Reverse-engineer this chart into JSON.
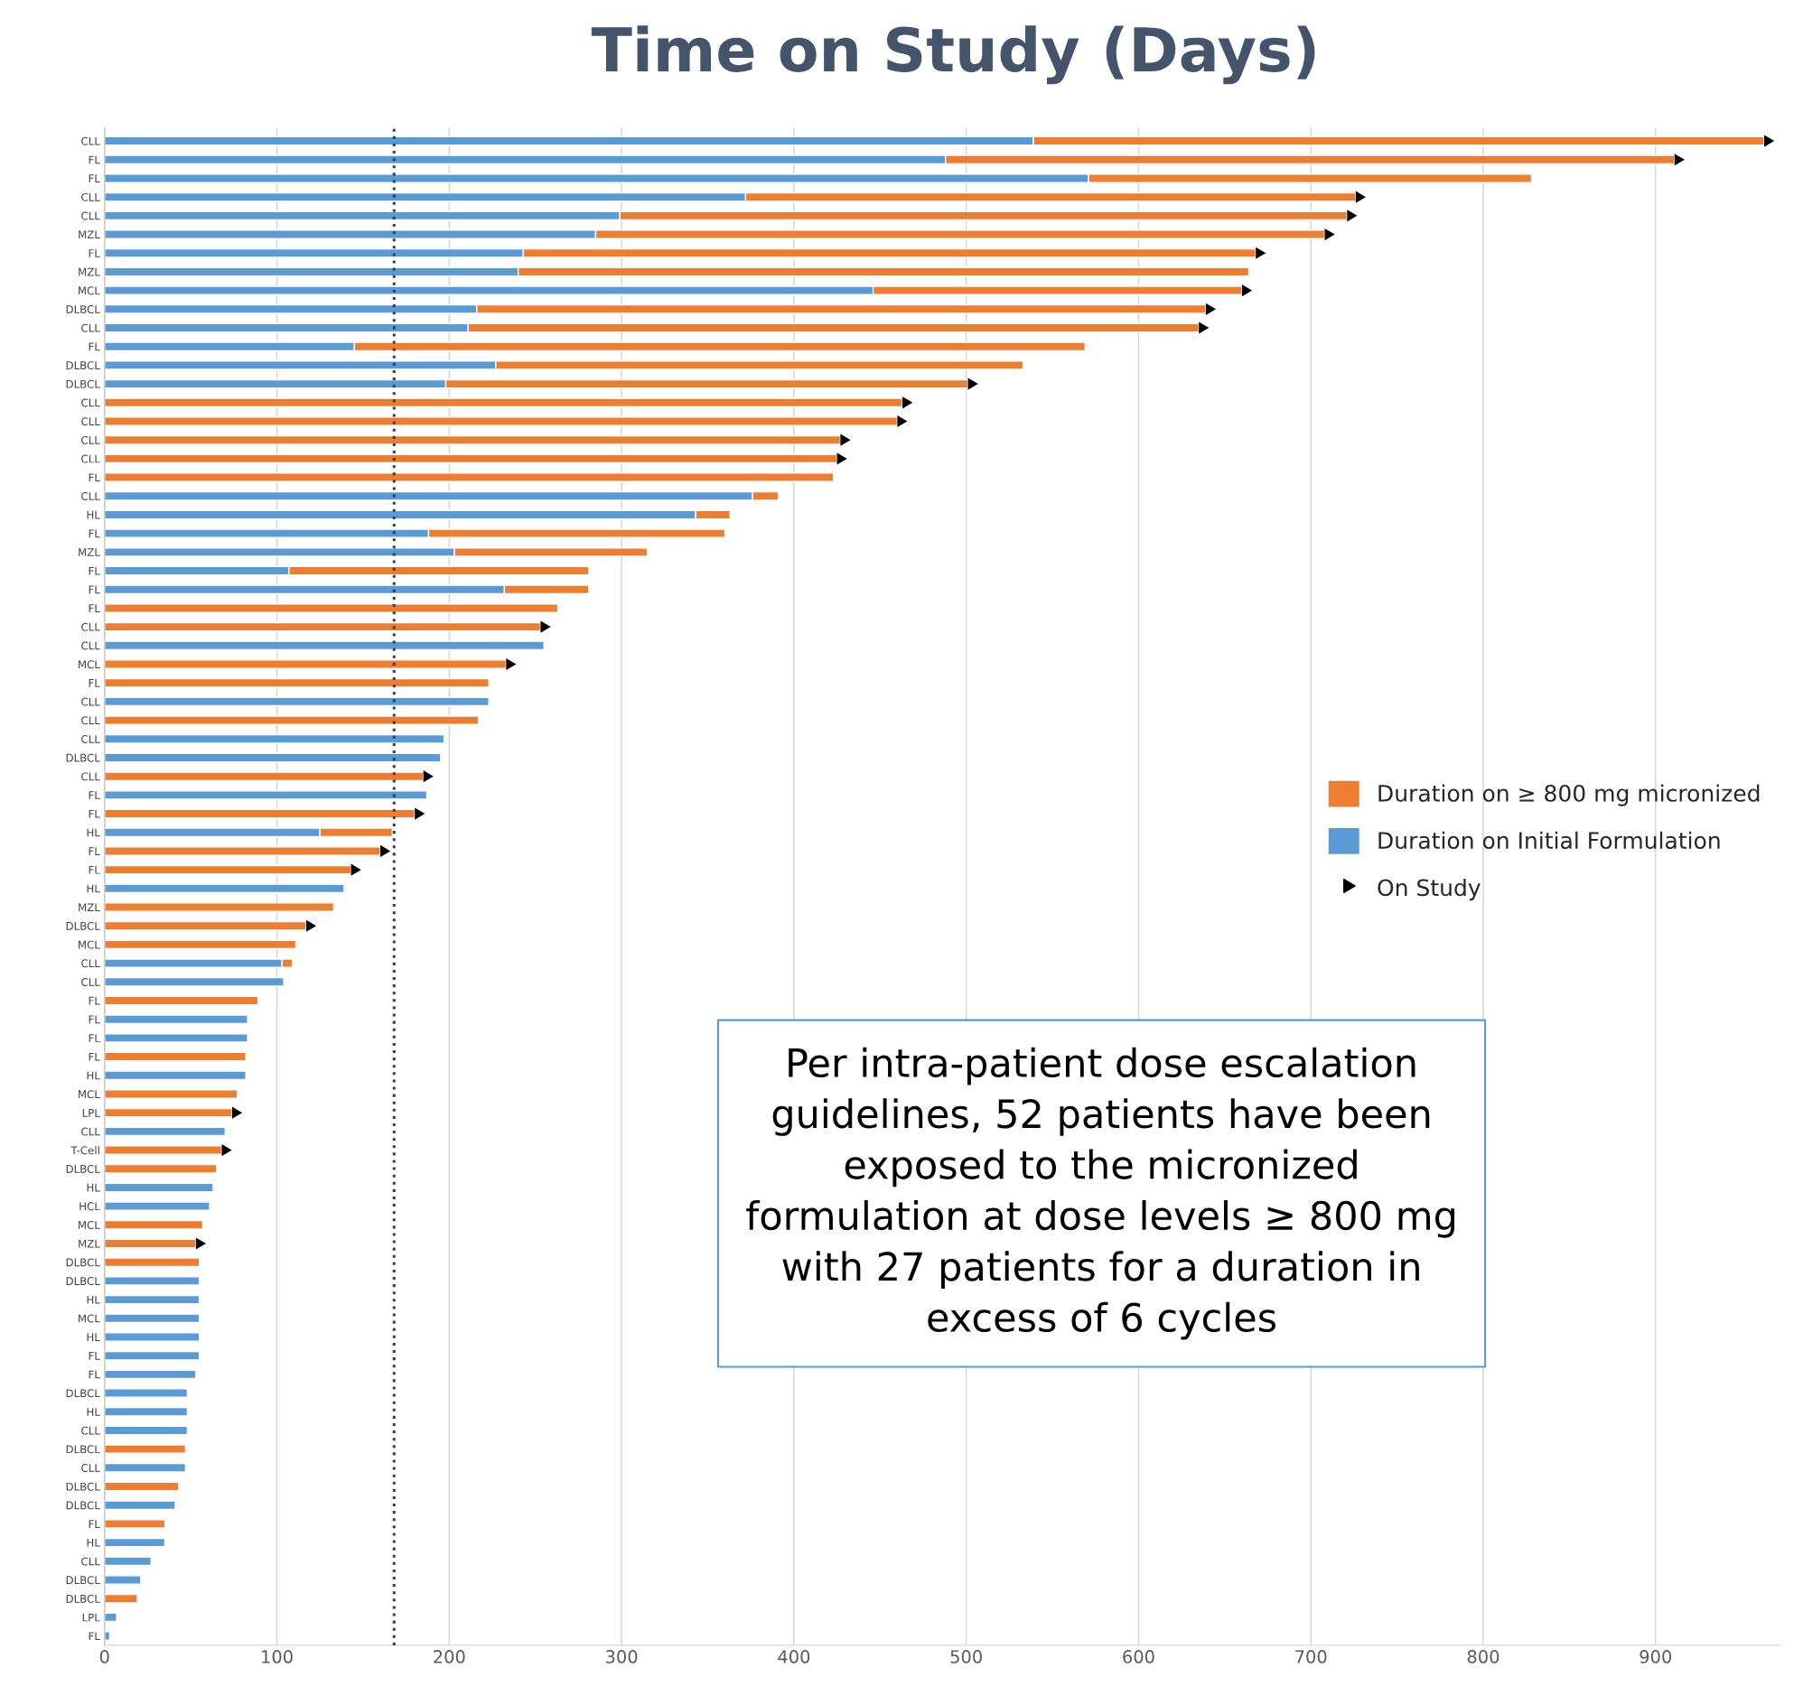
{
  "chart_data": {
    "type": "bar",
    "orientation": "horizontal",
    "stacked": true,
    "title": "Time on Study (Days)",
    "categories": [
      "CLL",
      "FL",
      "FL",
      "CLL",
      "CLL",
      "MZL",
      "FL",
      "MZL",
      "MCL",
      "DLBCL",
      "CLL",
      "FL",
      "DLBCL",
      "DLBCL",
      "CLL",
      "CLL",
      "CLL",
      "CLL",
      "FL",
      "CLL",
      "HL",
      "FL",
      "MZL",
      "FL",
      "FL",
      "FL",
      "CLL",
      "CLL",
      "MCL",
      "FL",
      "CLL",
      "CLL",
      "CLL",
      "DLBCL",
      "CLL",
      "FL",
      "FL",
      "HL",
      "FL",
      "FL",
      "HL",
      "MZL",
      "DLBCL",
      "MCL",
      "CLL",
      "CLL",
      "FL",
      "FL",
      "FL",
      "FL",
      "HL",
      "MCL",
      "LPL",
      "CLL",
      "T-Cell",
      "DLBCL",
      "HL",
      "HCL",
      "MCL",
      "MZL",
      "DLBCL",
      "DLBCL",
      "HL",
      "MCL",
      "HL",
      "FL",
      "FL",
      "DLBCL",
      "HL",
      "CLL",
      "DLBCL",
      "CLL",
      "DLBCL",
      "DLBCL",
      "FL",
      "HL",
      "CLL",
      "DLBCL",
      "DLBCL",
      "LPL",
      "FL"
    ],
    "series": [
      {
        "name": "Duration on Initial Formulation",
        "color": "#5b9bd5",
        "values": [
          539,
          488,
          571,
          372,
          299,
          285,
          243,
          240,
          446,
          216,
          211,
          145,
          227,
          198,
          null,
          null,
          null,
          null,
          null,
          376,
          343,
          188,
          203,
          107,
          232,
          null,
          null,
          255,
          null,
          null,
          223,
          null,
          197,
          195,
          null,
          187,
          null,
          125,
          null,
          null,
          139,
          null,
          null,
          null,
          103,
          104,
          null,
          83,
          83,
          null,
          82,
          null,
          null,
          70,
          null,
          null,
          63,
          61,
          null,
          null,
          null,
          55,
          55,
          55,
          55,
          55,
          53,
          48,
          48,
          48,
          null,
          47,
          null,
          41,
          null,
          35,
          27,
          21,
          null,
          7,
          3
        ]
      },
      {
        "name": "Duration on ≥ 800 mg micronized",
        "color": "#ed7d31",
        "values": [
          424,
          423,
          257,
          354,
          422,
          423,
          425,
          424,
          214,
          423,
          424,
          424,
          306,
          303,
          463,
          460,
          427,
          425,
          423,
          15,
          20,
          172,
          112,
          174,
          49,
          263,
          253,
          null,
          233,
          223,
          null,
          217,
          null,
          null,
          185,
          null,
          180,
          42,
          160,
          143,
          null,
          133,
          117,
          111,
          6,
          null,
          89,
          null,
          null,
          82,
          null,
          77,
          74,
          null,
          68,
          65,
          null,
          null,
          57,
          53,
          55,
          null,
          null,
          null,
          null,
          null,
          null,
          null,
          null,
          null,
          47,
          null,
          43,
          null,
          35,
          null,
          null,
          null,
          19,
          null,
          null
        ]
      },
      {
        "name": "On Study",
        "type": "scatter",
        "marker": "triangle",
        "color": "#000000",
        "values": [
          963,
          911,
          null,
          726,
          721,
          708,
          668,
          null,
          660,
          639,
          635,
          null,
          null,
          501,
          463,
          460,
          427,
          425,
          null,
          null,
          null,
          null,
          null,
          null,
          null,
          null,
          253,
          null,
          233,
          null,
          null,
          null,
          null,
          null,
          185,
          null,
          180,
          null,
          160,
          143,
          null,
          null,
          117,
          null,
          null,
          null,
          null,
          null,
          null,
          null,
          null,
          null,
          74,
          null,
          68,
          null,
          null,
          null,
          null,
          53,
          null,
          null,
          null,
          null,
          null,
          null,
          null,
          null,
          null,
          null,
          null,
          null,
          null,
          null,
          null,
          null,
          null,
          null,
          null,
          null,
          null
        ]
      }
    ],
    "xlim": [
      0,
      973
    ],
    "xticks": [
      0,
      100,
      200,
      300,
      400,
      500,
      600,
      700,
      800,
      900
    ],
    "grid": "x",
    "legend": "right",
    "ref_lines": [
      {
        "axis": "x",
        "value": 168,
        "color": "#333f50",
        "line_style": "dotted"
      }
    ],
    "annotations": [
      "Per intra-patient dose escalation\nguidelines, 52 patients have been\nexposed to the micronized\nformulation at dose levels ≥ 800 mg\nwith 27 patients for a duration in\nexcess of 6 cycles"
    ]
  }
}
